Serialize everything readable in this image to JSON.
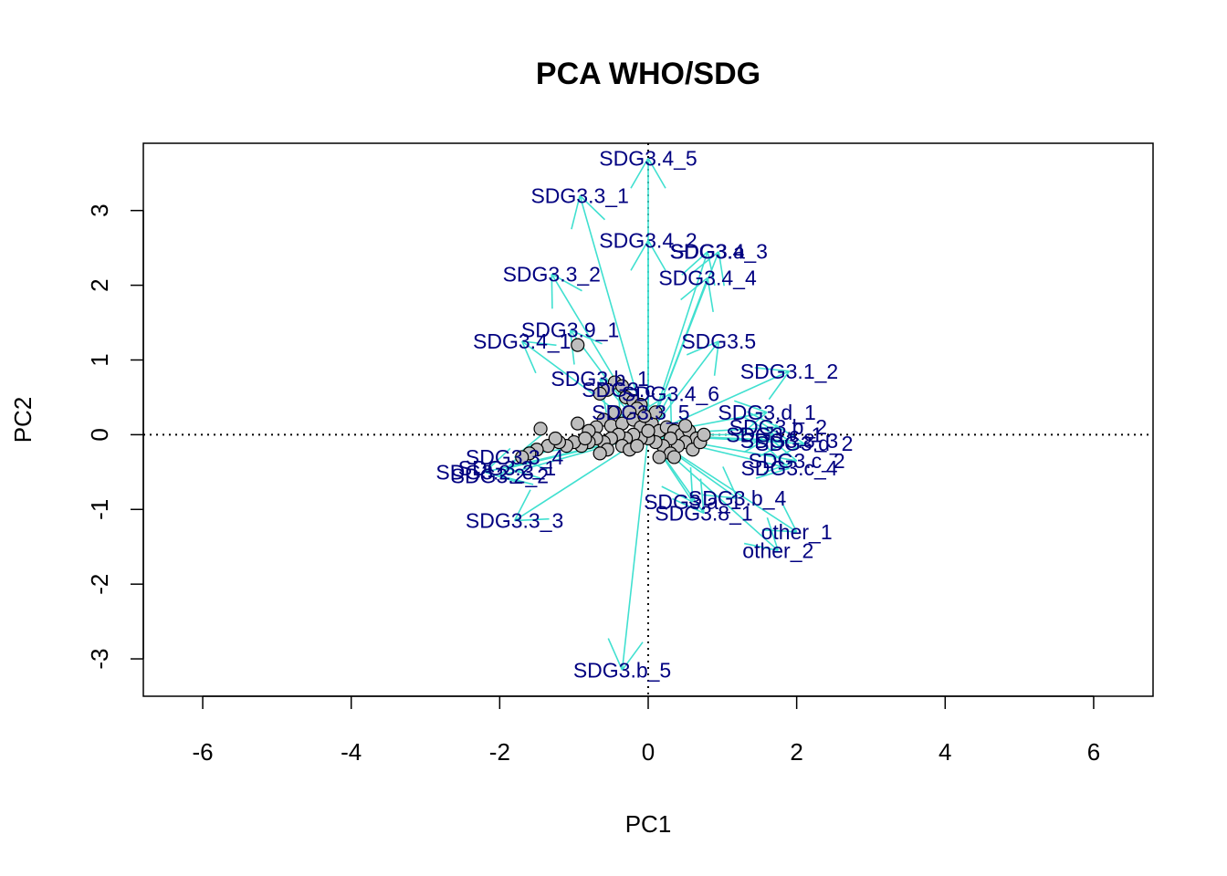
{
  "chart_data": {
    "type": "scatter",
    "subtype": "pca-biplot",
    "title": "PCA WHO/SDG",
    "xlabel": "PC1",
    "ylabel": "PC2",
    "xlim": [
      -6.8,
      6.8
    ],
    "ylim": [
      -3.5,
      3.9
    ],
    "xticks": [
      -6,
      -4,
      -2,
      0,
      2,
      4,
      6
    ],
    "yticks": [
      -3,
      -2,
      -1,
      0,
      1,
      2,
      3
    ],
    "reference_lines": {
      "x": 0,
      "y": 0,
      "style": "dotted"
    },
    "colors": {
      "arrow": "#40E0D0",
      "label": "#000080",
      "point_fill": "#BEBEBE",
      "point_stroke": "#000000"
    },
    "loadings": [
      {
        "name": "SDG3.4_5",
        "x": 0.0,
        "y": 3.7
      },
      {
        "name": "SDG3.3_1",
        "x": -0.92,
        "y": 3.2
      },
      {
        "name": "SDG3.4_2",
        "x": 0.0,
        "y": 2.6
      },
      {
        "name": "SDG3.4_3",
        "x": 0.95,
        "y": 2.45
      },
      {
        "name": "SDG3.a",
        "x": 0.8,
        "y": 2.45
      },
      {
        "name": "SDG3.4_4",
        "x": 0.8,
        "y": 2.1
      },
      {
        "name": "SDG3.3_2",
        "x": -1.3,
        "y": 2.15
      },
      {
        "name": "SDG3.9_1",
        "x": -1.05,
        "y": 1.4
      },
      {
        "name": "SDG3.4_1",
        "x": -1.7,
        "y": 1.25
      },
      {
        "name": "SDG3.5",
        "x": 0.95,
        "y": 1.25
      },
      {
        "name": "SDG3.1_2",
        "x": 1.9,
        "y": 0.85
      },
      {
        "name": "SDG3.b_1",
        "x": -0.65,
        "y": 0.75
      },
      {
        "name": "SDG3.c",
        "x": -0.4,
        "y": 0.6
      },
      {
        "name": "SDG3.4_6",
        "x": 0.3,
        "y": 0.55
      },
      {
        "name": "SDG3.d_1",
        "x": 1.6,
        "y": 0.3
      },
      {
        "name": "SDG3.b_2",
        "x": 1.75,
        "y": 0.1
      },
      {
        "name": "SDG3.c_1",
        "x": 1.7,
        "y": 0.0
      },
      {
        "name": "SDG3.3_5",
        "x": -0.1,
        "y": 0.3
      },
      {
        "name": "SDG3.8_3",
        "x": 1.9,
        "y": -0.08
      },
      {
        "name": "SDG3.d_2",
        "x": 2.1,
        "y": -0.12
      },
      {
        "name": "SDG3.c_2",
        "x": 2.0,
        "y": -0.35
      },
      {
        "name": "SDG3.c_4",
        "x": 1.9,
        "y": -0.45
      },
      {
        "name": "SDG3.3_4",
        "x": -1.8,
        "y": -0.3
      },
      {
        "name": "SDG3.2_1",
        "x": -1.9,
        "y": -0.45
      },
      {
        "name": "SDG3.2_2",
        "x": -2.0,
        "y": -0.55
      },
      {
        "name": "SDG3.2_3",
        "x": -2.2,
        "y": -0.5
      },
      {
        "name": "SDG3.3_3",
        "x": -1.8,
        "y": -1.15
      },
      {
        "name": "SDG3.b_4",
        "x": 1.2,
        "y": -0.85
      },
      {
        "name": "SDG3.a_1",
        "x": 0.6,
        "y": -0.9
      },
      {
        "name": "SDG3.8_1",
        "x": 0.75,
        "y": -1.05
      },
      {
        "name": "other_1",
        "x": 2.0,
        "y": -1.3
      },
      {
        "name": "other_2",
        "x": 1.75,
        "y": -1.55
      },
      {
        "name": "SDG3.b_5",
        "x": -0.35,
        "y": -3.15
      }
    ],
    "scores": [
      [
        -1.45,
        0.08
      ],
      [
        -0.95,
        1.2
      ],
      [
        -0.45,
        0.7
      ],
      [
        -0.35,
        0.65
      ],
      [
        -0.55,
        0.6
      ],
      [
        -0.65,
        0.55
      ],
      [
        -0.3,
        0.5
      ],
      [
        -0.2,
        0.45
      ],
      [
        -0.1,
        0.4
      ],
      [
        -0.15,
        0.35
      ],
      [
        -0.25,
        0.3
      ],
      [
        -0.45,
        0.3
      ],
      [
        -0.6,
        0.2
      ],
      [
        -0.95,
        0.15
      ],
      [
        -0.7,
        0.1
      ],
      [
        -0.5,
        0.12
      ],
      [
        -0.35,
        0.15
      ],
      [
        -0.2,
        0.2
      ],
      [
        -0.1,
        0.1
      ],
      [
        0.05,
        0.15
      ],
      [
        0.15,
        0.05
      ],
      [
        0.25,
        0.1
      ],
      [
        0.35,
        0.05
      ],
      [
        0.45,
        0.0
      ],
      [
        0.55,
        0.05
      ],
      [
        0.65,
        -0.05
      ],
      [
        0.5,
        -0.1
      ],
      [
        0.4,
        -0.15
      ],
      [
        0.3,
        -0.05
      ],
      [
        0.2,
        -0.15
      ],
      [
        0.1,
        -0.1
      ],
      [
        0.0,
        -0.05
      ],
      [
        -0.1,
        -0.05
      ],
      [
        -0.2,
        0.0
      ],
      [
        -0.3,
        -0.05
      ],
      [
        -0.4,
        0.0
      ],
      [
        -0.5,
        -0.05
      ],
      [
        -0.6,
        -0.1
      ],
      [
        -0.7,
        -0.05
      ],
      [
        -0.8,
        -0.1
      ],
      [
        -0.9,
        -0.15
      ],
      [
        -1.0,
        -0.1
      ],
      [
        -1.1,
        -0.15
      ],
      [
        -1.2,
        -0.1
      ],
      [
        -1.35,
        -0.15
      ],
      [
        -1.5,
        -0.2
      ],
      [
        -1.6,
        -0.25
      ],
      [
        -1.7,
        -0.3
      ],
      [
        -0.55,
        -0.2
      ],
      [
        -0.65,
        -0.25
      ],
      [
        -0.35,
        -0.15
      ],
      [
        -0.25,
        -0.2
      ],
      [
        0.6,
        -0.2
      ],
      [
        0.7,
        -0.1
      ],
      [
        0.3,
        -0.25
      ],
      [
        0.35,
        -0.3
      ],
      [
        0.75,
        0.0
      ],
      [
        0.1,
        0.3
      ],
      [
        -0.05,
        0.25
      ],
      [
        0.0,
        0.05
      ],
      [
        -0.8,
        0.05
      ],
      [
        -0.85,
        -0.05
      ],
      [
        -1.25,
        -0.05
      ],
      [
        0.5,
        0.12
      ],
      [
        -0.15,
        -0.15
      ],
      [
        0.15,
        -0.3
      ]
    ]
  }
}
